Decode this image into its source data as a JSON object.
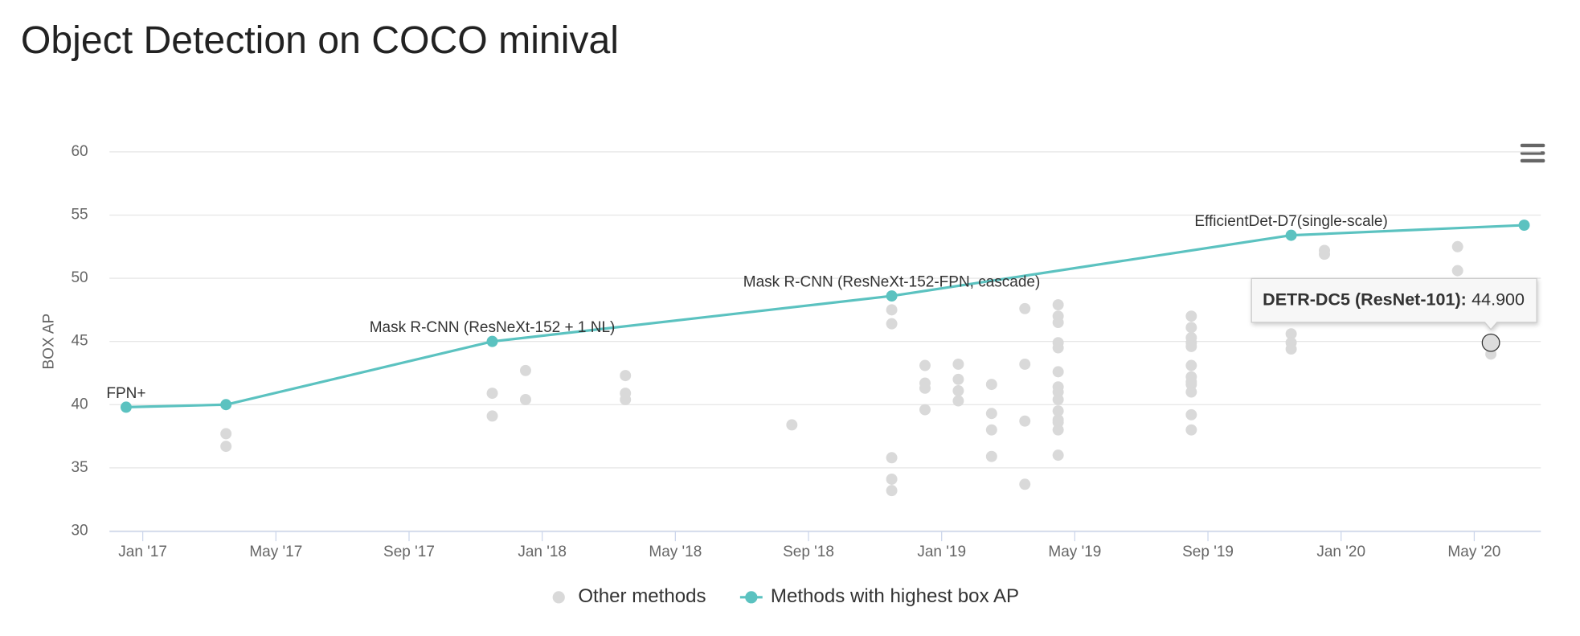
{
  "chart_data": {
    "type": "line",
    "title": "Object Detection on COCO minival",
    "y_label": "BOX AP",
    "xlim": [
      "2016-12",
      "2020-07"
    ],
    "xticks": [
      {
        "value": "2017-01",
        "label": "Jan '17"
      },
      {
        "value": "2017-05",
        "label": "May '17"
      },
      {
        "value": "2017-09",
        "label": "Sep '17"
      },
      {
        "value": "2018-01",
        "label": "Jan '18"
      },
      {
        "value": "2018-05",
        "label": "May '18"
      },
      {
        "value": "2018-09",
        "label": "Sep '18"
      },
      {
        "value": "2019-01",
        "label": "Jan '19"
      },
      {
        "value": "2019-05",
        "label": "May '19"
      },
      {
        "value": "2019-09",
        "label": "Sep '19"
      },
      {
        "value": "2020-01",
        "label": "Jan '20"
      },
      {
        "value": "2020-05",
        "label": "May '20"
      }
    ],
    "ylim": [
      30,
      60
    ],
    "yticks": [
      30,
      35,
      40,
      45,
      50,
      55,
      60
    ],
    "grid": true,
    "series": [
      {
        "name": "Other methods",
        "type": "scatter",
        "color": "#d9d9d9",
        "x": [
          "2017-03",
          "2017-03",
          "2017-11",
          "2017-11",
          "2017-12",
          "2017-12",
          "2018-03",
          "2018-03",
          "2018-03",
          "2018-08",
          "2018-11",
          "2018-11",
          "2018-11",
          "2018-11",
          "2018-11",
          "2018-12",
          "2018-12",
          "2018-12",
          "2018-12",
          "2019-01",
          "2019-01",
          "2019-01",
          "2019-01",
          "2019-02",
          "2019-02",
          "2019-02",
          "2019-02",
          "2019-03",
          "2019-03",
          "2019-03",
          "2019-03",
          "2019-04",
          "2019-04",
          "2019-04",
          "2019-04",
          "2019-04",
          "2019-04",
          "2019-04",
          "2019-04",
          "2019-04",
          "2019-04",
          "2019-04",
          "2019-04",
          "2019-04",
          "2019-04",
          "2019-08",
          "2019-08",
          "2019-08",
          "2019-08",
          "2019-08",
          "2019-08",
          "2019-08",
          "2019-08",
          "2019-08",
          "2019-08",
          "2019-08",
          "2019-08",
          "2019-11",
          "2019-11",
          "2019-11",
          "2019-12",
          "2019-12",
          "2020-04",
          "2020-04",
          "2020-05",
          "2020-05"
        ],
        "values": [
          37.7,
          36.7,
          40.9,
          39.1,
          42.7,
          40.4,
          42.3,
          40.9,
          40.4,
          38.4,
          35.8,
          34.1,
          33.2,
          47.5,
          46.4,
          43.1,
          41.7,
          41.3,
          39.6,
          42.0,
          41.1,
          43.2,
          40.3,
          41.6,
          39.3,
          38.0,
          35.9,
          43.2,
          47.6,
          38.7,
          33.7,
          39.5,
          38.8,
          38.0,
          36.0,
          42.6,
          41.4,
          47.9,
          47.0,
          46.5,
          44.9,
          44.5,
          41.0,
          40.4,
          38.6,
          44.9,
          41.8,
          47.0,
          46.1,
          45.3,
          44.6,
          43.1,
          42.2,
          41.6,
          41.0,
          39.2,
          38.0,
          45.6,
          44.9,
          44.4,
          52.2,
          51.9,
          52.5,
          50.6,
          44.9,
          44.0
        ]
      },
      {
        "name": "Methods with highest box AP",
        "type": "line",
        "color": "#5bc2c0",
        "x": [
          "2016-12",
          "2017-03",
          "2017-11",
          "2018-11",
          "2019-11",
          "2020-06"
        ],
        "values": [
          39.8,
          40.0,
          45.0,
          48.6,
          53.4,
          54.2
        ],
        "point_labels": [
          "FPN+",
          null,
          "Mask R-CNN (ResNeXt-152 + 1 NL)",
          "Mask R-CNN (ResNeXt-152-FPN, cascade)",
          "EfficientDet-D7(single-scale)",
          null
        ]
      }
    ],
    "tooltip": {
      "name": "DETR-DC5 (ResNet-101):",
      "x": "2020-05",
      "value": 44.9,
      "value_label": "44.900"
    }
  }
}
